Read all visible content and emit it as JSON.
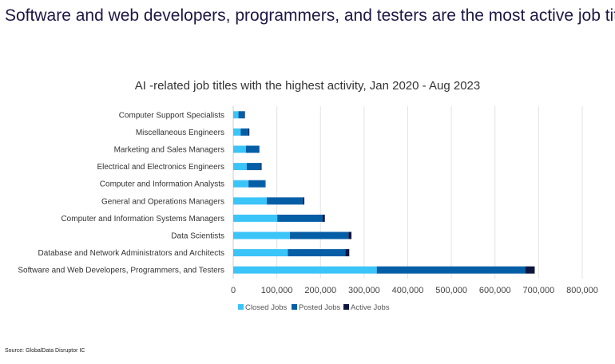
{
  "headline": "Software and web developers, programmers, and testers are the most active job titles",
  "source": "Source: GlobalData Disruptor IC",
  "chart_data": {
    "type": "bar",
    "orientation": "horizontal",
    "stacked": true,
    "title": "AI -related job titles with the highest activity, Jan 2020 - Aug 2023",
    "categories": [
      "Computer Support Specialists",
      "Miscellaneous Engineers",
      "Marketing and Sales Managers",
      "Electrical and Electronics Engineers",
      "Computer and Information Analysts",
      "General and Operations Managers",
      "Computer and Information Systems Managers",
      "Data Scientists",
      "Database and Network Administrators and Architects",
      "Software and Web Developers, Programmers, and Testers"
    ],
    "series": [
      {
        "name": "Closed Jobs",
        "color": "#3bc4f8",
        "values": [
          12000,
          17000,
          29000,
          31000,
          35000,
          77000,
          101000,
          130000,
          125000,
          329000
        ]
      },
      {
        "name": "Posted Jobs",
        "color": "#045ea6",
        "values": [
          14000,
          18000,
          30000,
          32000,
          38000,
          83000,
          104000,
          134000,
          132000,
          341000
        ]
      },
      {
        "name": "Active Jobs",
        "color": "#0e1640",
        "values": [
          1000,
          2000,
          1000,
          2000,
          1000,
          3000,
          5000,
          7000,
          9000,
          21000
        ]
      }
    ],
    "xlim": [
      0,
      800000
    ],
    "xticks": [
      "0",
      "100,000",
      "200,000",
      "300,000",
      "400,000",
      "500,000",
      "600,000",
      "700,000",
      "800,000"
    ],
    "grid": true,
    "legend": "bottom"
  }
}
